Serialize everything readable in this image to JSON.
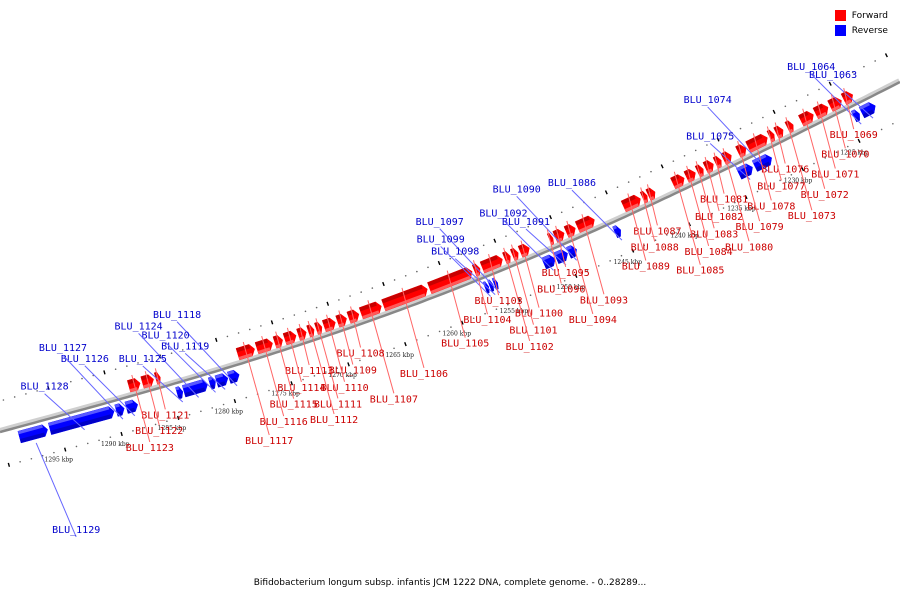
{
  "caption": "Bifidobacterium longum subsp. infantis JCM 1222 DNA, complete genome. - 0..28289...",
  "legend": [
    {
      "label": "Forward",
      "color": "#ff0000"
    },
    {
      "label": "Reverse",
      "color": "#0000ff"
    }
  ],
  "colors": {
    "forward": "#ff0000",
    "forward_label": "#cc0000",
    "reverse": "#0000ff",
    "reverse_label": "#0000cc",
    "backbone": "#888888",
    "ticks": "#000000"
  },
  "ticks": {
    "unit": "kbp",
    "major": [
      1225,
      1230,
      1235,
      1240,
      1245,
      1250,
      1255,
      1260,
      1265,
      1270,
      1275,
      1280,
      1285,
      1290,
      1295
    ]
  },
  "genes": {
    "reverse": [
      {
        "name": "BLU_1063",
        "start": 1222.6,
        "end": 1223.8
      },
      {
        "name": "BLU_1064",
        "start": 1224.0,
        "end": 1224.5
      },
      {
        "name": "BLU_1074",
        "start": 1231.8,
        "end": 1233.3
      },
      {
        "name": "BLU_1075",
        "start": 1233.5,
        "end": 1234.7
      },
      {
        "name": "BLU_1086",
        "start": 1245.2,
        "end": 1245.7
      },
      {
        "name": "BLU_1090",
        "start": 1249.1,
        "end": 1249.8
      },
      {
        "name": "BLU_1091",
        "start": 1249.9,
        "end": 1250.9
      },
      {
        "name": "BLU_1092",
        "start": 1251.0,
        "end": 1252.0
      },
      {
        "name": "BLU_1097",
        "start": 1256.1,
        "end": 1256.4
      },
      {
        "name": "BLU_1098",
        "start": 1256.5,
        "end": 1256.8
      },
      {
        "name": "BLU_1099",
        "start": 1256.9,
        "end": 1257.2
      },
      {
        "name": "BLU_1118",
        "start": 1279.0,
        "end": 1279.9
      },
      {
        "name": "BLU_1119",
        "start": 1280.0,
        "end": 1281.0
      },
      {
        "name": "BLU_1120",
        "start": 1281.1,
        "end": 1281.6
      },
      {
        "name": "BLU_1124",
        "start": 1281.8,
        "end": 1283.9
      },
      {
        "name": "BLU_1125",
        "start": 1284.0,
        "end": 1284.5
      },
      {
        "name": "BLU_1126",
        "start": 1288.0,
        "end": 1289.0
      },
      {
        "name": "BLU_1127",
        "start": 1289.2,
        "end": 1289.9
      },
      {
        "name": "BLU_1128",
        "start": 1290.1,
        "end": 1295.8
      },
      {
        "name": "BLU_1129",
        "start": 1296.0,
        "end": 1298.5
      }
    ],
    "forward": [
      {
        "name": "BLU_1069",
        "start": 1223.8,
        "end": 1224.6
      },
      {
        "name": "BLU_1070",
        "start": 1224.8,
        "end": 1225.8
      },
      {
        "name": "BLU_1071",
        "start": 1226.0,
        "end": 1227.1
      },
      {
        "name": "BLU_1072",
        "start": 1227.3,
        "end": 1228.4
      },
      {
        "name": "BLU_1073",
        "start": 1229.1,
        "end": 1229.6
      },
      {
        "name": "BLU_1076",
        "start": 1230.0,
        "end": 1230.6
      },
      {
        "name": "BLU_1077",
        "start": 1230.8,
        "end": 1231.2
      },
      {
        "name": "BLU_1078",
        "start": 1231.4,
        "end": 1233.1
      },
      {
        "name": "BLU_1079",
        "start": 1233.3,
        "end": 1234.0
      },
      {
        "name": "BLU_1080",
        "start": 1234.6,
        "end": 1235.3
      },
      {
        "name": "BLU_1081",
        "start": 1235.5,
        "end": 1236.0
      },
      {
        "name": "BLU_1082",
        "start": 1236.2,
        "end": 1236.9
      },
      {
        "name": "BLU_1083",
        "start": 1237.1,
        "end": 1237.6
      },
      {
        "name": "BLU_1084",
        "start": 1237.8,
        "end": 1238.6
      },
      {
        "name": "BLU_1085",
        "start": 1238.8,
        "end": 1239.8
      },
      {
        "name": "BLU_1087",
        "start": 1241.4,
        "end": 1242.0
      },
      {
        "name": "BLU_1088",
        "start": 1242.1,
        "end": 1242.5
      },
      {
        "name": "BLU_1089",
        "start": 1242.7,
        "end": 1244.2
      },
      {
        "name": "BLU_1093",
        "start": 1246.8,
        "end": 1248.3
      },
      {
        "name": "BLU_1094",
        "start": 1248.5,
        "end": 1249.3
      },
      {
        "name": "BLU_1095",
        "start": 1249.5,
        "end": 1250.3
      },
      {
        "name": "BLU_1096",
        "start": 1250.5,
        "end": 1250.8
      },
      {
        "name": "BLU_1100",
        "start": 1252.6,
        "end": 1253.4
      },
      {
        "name": "BLU_1101",
        "start": 1253.6,
        "end": 1254.1
      },
      {
        "name": "BLU_1102",
        "start": 1254.3,
        "end": 1254.8
      },
      {
        "name": "BLU_1103",
        "start": 1255.0,
        "end": 1256.8
      },
      {
        "name": "BLU_1104",
        "start": 1257.0,
        "end": 1257.5
      },
      {
        "name": "BLU_1105",
        "start": 1257.7,
        "end": 1261.5
      },
      {
        "name": "BLU_1106",
        "start": 1261.7,
        "end": 1265.6
      },
      {
        "name": "BLU_1107",
        "start": 1265.8,
        "end": 1267.6
      },
      {
        "name": "BLU_1108",
        "start": 1267.8,
        "end": 1268.7
      },
      {
        "name": "BLU_1109",
        "start": 1268.9,
        "end": 1269.7
      },
      {
        "name": "BLU_1110",
        "start": 1269.9,
        "end": 1270.9
      },
      {
        "name": "BLU_1111",
        "start": 1271.1,
        "end": 1271.6
      },
      {
        "name": "BLU_1112",
        "start": 1271.8,
        "end": 1272.3
      },
      {
        "name": "BLU_1113",
        "start": 1272.5,
        "end": 1273.2
      },
      {
        "name": "BLU_1114",
        "start": 1273.4,
        "end": 1274.4
      },
      {
        "name": "BLU_1115",
        "start": 1274.6,
        "end": 1275.3
      },
      {
        "name": "BLU_1116",
        "start": 1275.5,
        "end": 1276.9
      },
      {
        "name": "BLU_1117",
        "start": 1277.1,
        "end": 1278.6
      },
      {
        "name": "BLU_1121",
        "start": 1285.5,
        "end": 1285.9
      },
      {
        "name": "BLU_1122",
        "start": 1286.1,
        "end": 1287.1
      },
      {
        "name": "BLU_1123",
        "start": 1287.3,
        "end": 1288.3
      }
    ]
  },
  "labels": {
    "reverse": [
      {
        "name": "BLU_1063",
        "gene": "BLU_1063"
      },
      {
        "name": "BLU_1064",
        "gene": "BLU_1064"
      },
      {
        "name": "BLU_1074",
        "gene": "BLU_1074"
      },
      {
        "name": "BLU_1075",
        "gene": "BLU_1075"
      },
      {
        "name": "BLU_1086",
        "gene": "BLU_1086"
      },
      {
        "name": "BLU_1090",
        "gene": "BLU_1090"
      },
      {
        "name": "BLU_1091",
        "gene": "BLU_1091"
      },
      {
        "name": "BLU_1092",
        "gene": "BLU_1092"
      },
      {
        "name": "BLU_1097",
        "gene": "BLU_1097"
      },
      {
        "name": "BLU_1098",
        "gene": "BLU_1098"
      },
      {
        "name": "BLU_1099",
        "gene": "BLU_1099"
      },
      {
        "name": "BLU_1118",
        "gene": "BLU_1118"
      },
      {
        "name": "BLU_1119",
        "gene": "BLU_1119"
      },
      {
        "name": "BLU_1120",
        "gene": "BLU_1120"
      },
      {
        "name": "BLU_1124",
        "gene": "BLU_1124"
      },
      {
        "name": "BLU_1125",
        "gene": "BLU_1125"
      },
      {
        "name": "BLU_1126",
        "gene": "BLU_1126"
      },
      {
        "name": "BLU_1127",
        "gene": "BLU_1127"
      },
      {
        "name": "BLU_1128",
        "gene": "BLU_1128"
      },
      {
        "name": "BLU_1129",
        "gene": "BLU_1129"
      }
    ]
  }
}
